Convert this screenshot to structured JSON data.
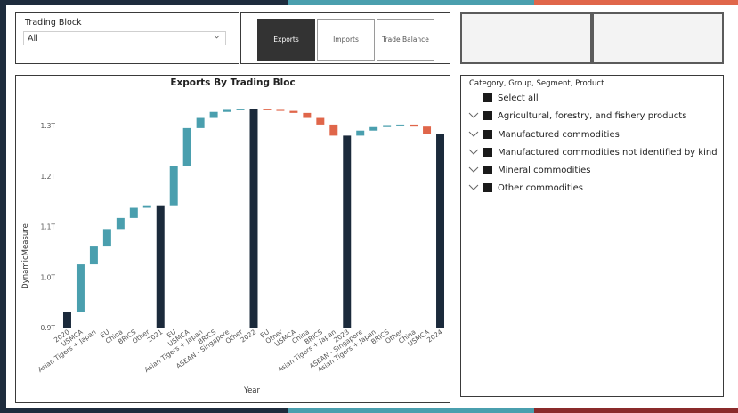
{
  "theme": {
    "navy": "#1e2c3d",
    "teal": "#4a9fae",
    "orange": "#e0664a",
    "red": "#8a2a2a",
    "total": "#1b2a3b",
    "increase": "#4a9fae",
    "decrease": "#e0664a"
  },
  "slicer": {
    "title": "Trading Block",
    "value": "All"
  },
  "buttons": [
    {
      "label": "Exports",
      "active": true
    },
    {
      "label": "Imports",
      "active": false
    },
    {
      "label": "Trade Balance",
      "active": false
    }
  ],
  "tree": {
    "title": "Category, Group, Segment, Product",
    "select_all": "Select all",
    "items": [
      "Agricultural, forestry, and fishery products",
      "Manufactured commodities",
      "Manufactured commodities not identified by kind",
      "Mineral commodities",
      "Other commodities"
    ]
  },
  "chart_data": {
    "type": "waterfall",
    "title": "Exports By Trading Bloc",
    "xlabel": "Year",
    "ylabel": "DynamicMeasure",
    "ylim": [
      0.9,
      1.36
    ],
    "y_ticks": [
      0.9,
      1.0,
      1.1,
      1.2,
      1.3
    ],
    "y_tick_labels": [
      "0.9T",
      "1.0T",
      "1.1T",
      "1.2T",
      "1.3T"
    ],
    "bars": [
      {
        "label": "2020",
        "type": "total",
        "start": 0.9,
        "end": 0.93
      },
      {
        "label": "USMCA",
        "type": "increase",
        "start": 0.93,
        "end": 1.025
      },
      {
        "label": "Asian Tigers + Japan",
        "type": "increase",
        "start": 1.025,
        "end": 1.062
      },
      {
        "label": "EU",
        "type": "increase",
        "start": 1.062,
        "end": 1.095
      },
      {
        "label": "China",
        "type": "increase",
        "start": 1.095,
        "end": 1.117
      },
      {
        "label": "BRICS",
        "type": "increase",
        "start": 1.117,
        "end": 1.137
      },
      {
        "label": "Other",
        "type": "increase",
        "start": 1.137,
        "end": 1.142
      },
      {
        "label": "2021",
        "type": "total",
        "start": 0.9,
        "end": 1.142
      },
      {
        "label": "EU",
        "type": "increase",
        "start": 1.142,
        "end": 1.22
      },
      {
        "label": "USMCA",
        "type": "increase",
        "start": 1.22,
        "end": 1.295
      },
      {
        "label": "Asian Tigers + Japan",
        "type": "increase",
        "start": 1.295,
        "end": 1.315
      },
      {
        "label": "BRICS",
        "type": "increase",
        "start": 1.315,
        "end": 1.327
      },
      {
        "label": "ASEAN - Singapore",
        "type": "increase",
        "start": 1.327,
        "end": 1.331
      },
      {
        "label": "Other",
        "type": "increase",
        "start": 1.331,
        "end": 1.332
      },
      {
        "label": "2022",
        "type": "total",
        "start": 0.9,
        "end": 1.332
      },
      {
        "label": "EU",
        "type": "decrease",
        "start": 1.332,
        "end": 1.331
      },
      {
        "label": "Other",
        "type": "decrease",
        "start": 1.331,
        "end": 1.329
      },
      {
        "label": "USMCA",
        "type": "decrease",
        "start": 1.329,
        "end": 1.325
      },
      {
        "label": "China",
        "type": "decrease",
        "start": 1.325,
        "end": 1.315
      },
      {
        "label": "BRICS",
        "type": "decrease",
        "start": 1.315,
        "end": 1.302
      },
      {
        "label": "Asian Tigers + Japan",
        "type": "decrease",
        "start": 1.302,
        "end": 1.28
      },
      {
        "label": "2023",
        "type": "total",
        "start": 0.9,
        "end": 1.28
      },
      {
        "label": "ASEAN - Singapore",
        "type": "increase",
        "start": 1.28,
        "end": 1.29
      },
      {
        "label": "Asian Tigers + Japan",
        "type": "increase",
        "start": 1.29,
        "end": 1.297
      },
      {
        "label": "BRICS",
        "type": "increase",
        "start": 1.297,
        "end": 1.301
      },
      {
        "label": "Other",
        "type": "increase",
        "start": 1.301,
        "end": 1.302
      },
      {
        "label": "China",
        "type": "decrease",
        "start": 1.302,
        "end": 1.298
      },
      {
        "label": "USMCA",
        "type": "decrease",
        "start": 1.298,
        "end": 1.283
      },
      {
        "label": "2024",
        "type": "total",
        "start": 0.9,
        "end": 1.283
      }
    ]
  }
}
